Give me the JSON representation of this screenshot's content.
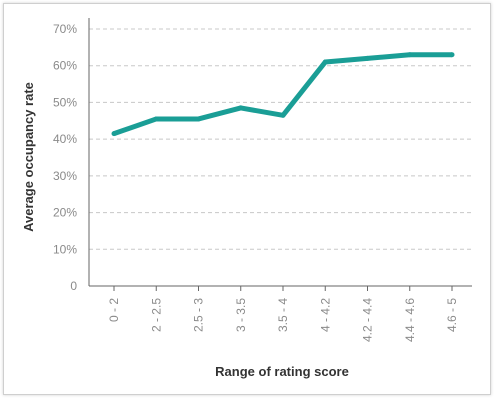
{
  "chart_data": {
    "type": "line",
    "title": "",
    "xlabel": "Range of rating score",
    "ylabel": "Average occupancy rate",
    "categories": [
      "0 - 2",
      "2 - 2.5",
      "2.5 - 3",
      "3 - 3.5",
      "3.5 - 4",
      "4 - 4.2",
      "4.2 - 4.4",
      "4.4 - 4.6",
      "4.6 - 5"
    ],
    "series": [
      {
        "values": [
          41.5,
          45.5,
          45.5,
          48.5,
          46.5,
          61,
          62,
          63,
          63
        ]
      }
    ],
    "ylim": [
      0,
      70
    ],
    "yticks": [
      {
        "value": 0,
        "label": "0"
      },
      {
        "value": 10,
        "label": "10%"
      },
      {
        "value": 20,
        "label": "20%"
      },
      {
        "value": 30,
        "label": "30%"
      },
      {
        "value": 40,
        "label": "40%"
      },
      {
        "value": 50,
        "label": "50%"
      },
      {
        "value": 60,
        "label": "60%"
      },
      {
        "value": 70,
        "label": "70%"
      }
    ],
    "grid": true,
    "line_color": "#1a9e96",
    "grid_color": "#c8c8c8"
  }
}
